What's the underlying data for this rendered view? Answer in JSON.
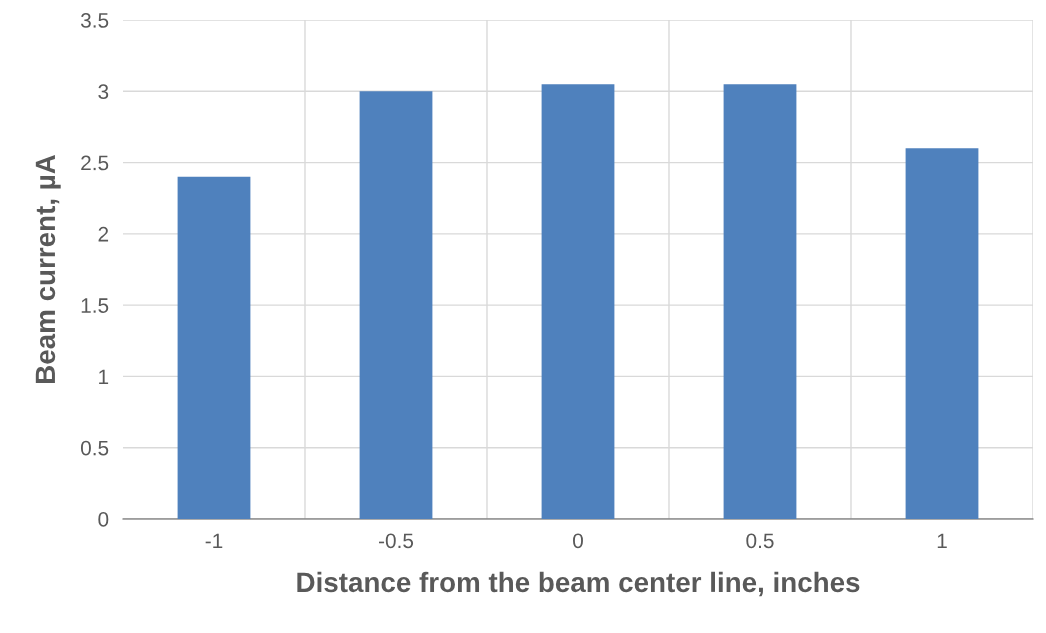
{
  "chart_data": {
    "type": "bar",
    "xlabel": "Distance from the beam center line, inches",
    "ylabel": "Beam current, µA",
    "categories": [
      "-1",
      "-0.5",
      "0",
      "0.5",
      "1"
    ],
    "values": [
      2.4,
      3.0,
      3.05,
      3.05,
      2.6
    ],
    "color": "#4f81bd",
    "ylim": [
      0,
      3.5
    ],
    "yticks": [
      {
        "value": 0,
        "label": "0"
      },
      {
        "value": 0.5,
        "label": "0.5"
      },
      {
        "value": 1,
        "label": "1"
      },
      {
        "value": 1.5,
        "label": "1.5"
      },
      {
        "value": 2,
        "label": "2"
      },
      {
        "value": 2.5,
        "label": "2.5"
      },
      {
        "value": 3,
        "label": "3"
      },
      {
        "value": 3.5,
        "label": "3.5"
      }
    ],
    "grid": true
  }
}
